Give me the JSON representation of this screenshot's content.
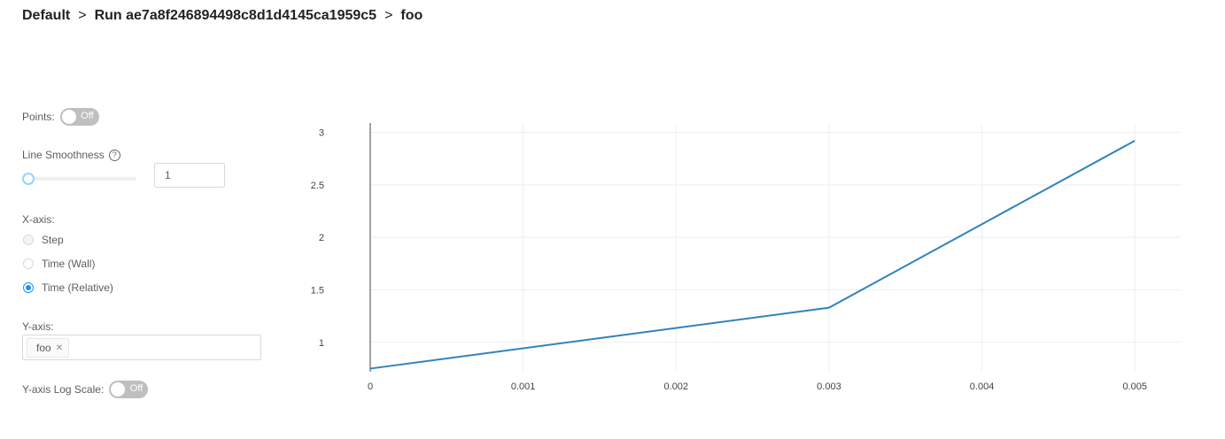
{
  "breadcrumb": {
    "items": [
      "Default",
      "Run ae7a8f246894498c8d1d4145ca1959c5",
      "foo"
    ],
    "separator": ">"
  },
  "controls": {
    "points": {
      "label": "Points:",
      "toggle_text": "Off",
      "on": false
    },
    "smoothness": {
      "label": "Line Smoothness",
      "help_icon": "question-circle-icon",
      "value": "1",
      "slider_fraction": 0.0
    },
    "xaxis": {
      "label": "X-axis:",
      "options": [
        {
          "label": "Step",
          "checked": false,
          "disabled": true
        },
        {
          "label": "Time (Wall)",
          "checked": false,
          "disabled": false
        },
        {
          "label": "Time (Relative)",
          "checked": true,
          "disabled": false
        }
      ]
    },
    "yaxis": {
      "label": "Y-axis:",
      "tags": [
        {
          "label": "foo",
          "remove_icon": "close-icon"
        }
      ]
    },
    "log_scale": {
      "label": "Y-axis Log Scale:",
      "toggle_text": "Off",
      "on": false
    }
  },
  "colors": {
    "line": "#3183bd",
    "accent": "#1890ff",
    "switch_off": "#bfbfbf"
  },
  "chart_data": {
    "type": "line",
    "series": [
      {
        "values": [
          0.75,
          1.33,
          2.92
        ],
        "x": [
          0,
          0.003,
          0.005
        ]
      }
    ],
    "xticks": [
      "0",
      "0.001",
      "0.002",
      "0.003",
      "0.004",
      "0.005"
    ],
    "yticks": [
      "1",
      "1.5",
      "2",
      "2.5",
      "3"
    ],
    "xlim": [
      0,
      0.0053
    ],
    "ylim": [
      0.72,
      3.08
    ],
    "grid": true
  }
}
